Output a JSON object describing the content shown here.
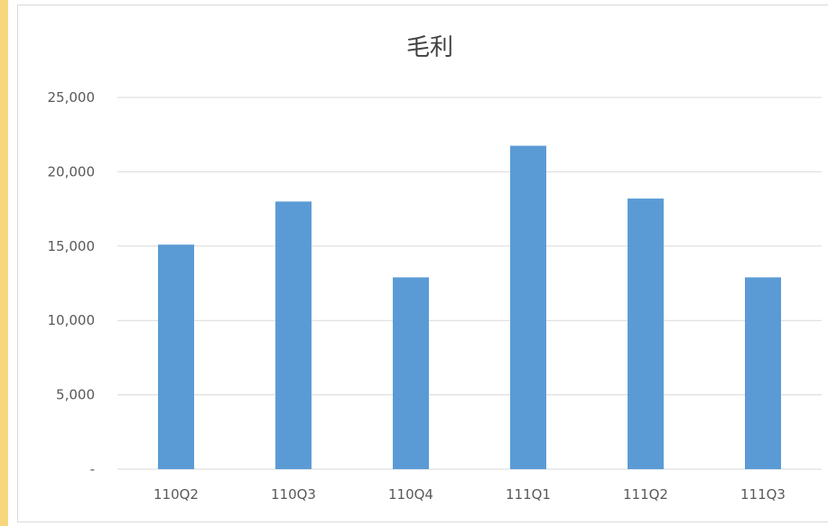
{
  "chart_data": {
    "type": "bar",
    "title": "毛利",
    "xlabel": "",
    "ylabel": "",
    "categories": [
      "110Q2",
      "110Q3",
      "110Q4",
      "111Q1",
      "111Q2",
      "111Q3"
    ],
    "values": [
      15100,
      18000,
      12900,
      21750,
      18200,
      12900
    ],
    "ylim": [
      0,
      25000
    ],
    "yticks": [
      0,
      5000,
      10000,
      15000,
      20000,
      25000
    ],
    "ytick_labels": [
      "-",
      "5,000",
      "10,000",
      "15,000",
      "20,000",
      "25,000"
    ],
    "grid": true,
    "legend": "none",
    "bar_color": "#5b9bd5",
    "grid_color": "#d9d9d9"
  }
}
